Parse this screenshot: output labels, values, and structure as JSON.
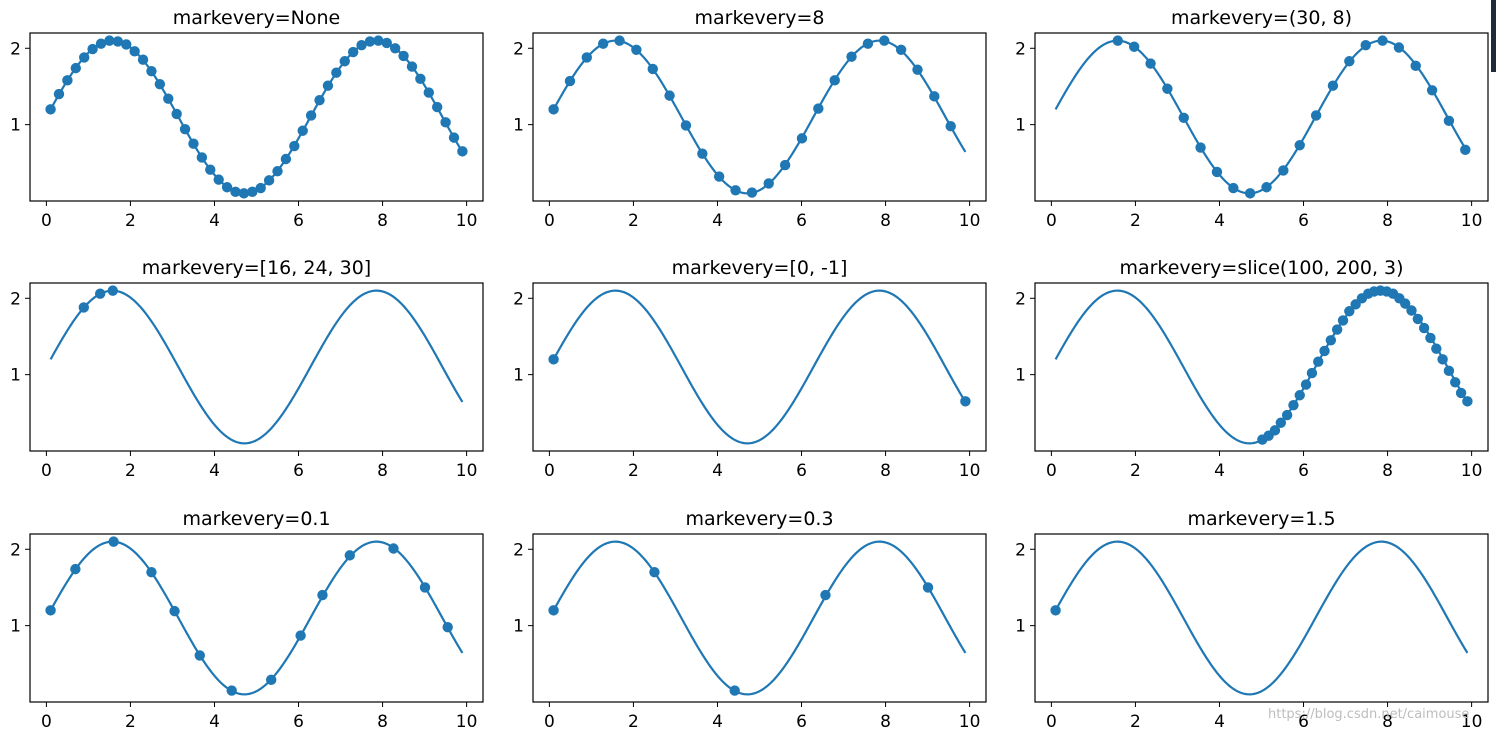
{
  "watermark": "https://blog.csdn.net/caimouse",
  "line_color": "#1f77b4",
  "chart_data": [
    {
      "type": "line",
      "title": "markevery=None",
      "markevery": "None",
      "function": "y = sin(x) + 1.1",
      "x_range": [
        0.1,
        9.9
      ],
      "num_points": 200,
      "xlim": [
        -0.39,
        10.39
      ],
      "ylim": [
        0.0,
        2.2
      ],
      "xticks": [
        0,
        2,
        4,
        6,
        8,
        10
      ],
      "yticks": [
        1,
        2
      ],
      "marker_points": [
        [
          0.1,
          1.2
        ],
        [
          0.3,
          1.4
        ],
        [
          0.5,
          1.58
        ],
        [
          0.7,
          1.74
        ],
        [
          0.9,
          1.88
        ],
        [
          1.1,
          1.99
        ],
        [
          1.3,
          2.06
        ],
        [
          1.5,
          2.1
        ],
        [
          1.7,
          2.09
        ],
        [
          1.9,
          2.05
        ],
        [
          2.1,
          1.96
        ],
        [
          2.3,
          1.85
        ],
        [
          2.5,
          1.7
        ],
        [
          2.7,
          1.53
        ],
        [
          2.9,
          1.34
        ],
        [
          3.1,
          1.14
        ],
        [
          3.3,
          0.94
        ],
        [
          3.5,
          0.75
        ],
        [
          3.7,
          0.57
        ],
        [
          3.9,
          0.41
        ],
        [
          4.1,
          0.28
        ],
        [
          4.3,
          0.18
        ],
        [
          4.5,
          0.12
        ],
        [
          4.7,
          0.1
        ],
        [
          4.9,
          0.12
        ],
        [
          5.1,
          0.17
        ],
        [
          5.3,
          0.27
        ],
        [
          5.5,
          0.39
        ],
        [
          5.7,
          0.55
        ],
        [
          5.9,
          0.72
        ],
        [
          6.1,
          0.92
        ],
        [
          6.3,
          1.12
        ],
        [
          6.5,
          1.32
        ],
        [
          6.7,
          1.51
        ],
        [
          6.9,
          1.68
        ],
        [
          7.1,
          1.83
        ],
        [
          7.3,
          1.95
        ],
        [
          7.5,
          2.04
        ],
        [
          7.7,
          2.09
        ],
        [
          7.9,
          2.1
        ],
        [
          8.1,
          2.07
        ],
        [
          8.3,
          2.0
        ],
        [
          8.5,
          1.9
        ],
        [
          8.7,
          1.76
        ],
        [
          8.9,
          1.6
        ],
        [
          9.1,
          1.42
        ],
        [
          9.3,
          1.23
        ],
        [
          9.5,
          1.03
        ],
        [
          9.7,
          0.83
        ],
        [
          9.9,
          0.65
        ]
      ]
    },
    {
      "type": "line",
      "title": "markevery=8",
      "markevery": "8",
      "function": "y = sin(x) + 1.1",
      "x_range": [
        0.1,
        9.9
      ],
      "num_points": 200,
      "xlim": [
        -0.39,
        10.39
      ],
      "ylim": [
        0.0,
        2.2
      ],
      "xticks": [
        0,
        2,
        4,
        6,
        8,
        10
      ],
      "yticks": [
        1,
        2
      ],
      "marker_points": [
        [
          0.1,
          1.2
        ],
        [
          0.49,
          1.57
        ],
        [
          0.89,
          1.88
        ],
        [
          1.28,
          2.06
        ],
        [
          1.67,
          2.1
        ],
        [
          2.07,
          1.98
        ],
        [
          2.46,
          1.73
        ],
        [
          2.86,
          1.38
        ],
        [
          3.25,
          0.99
        ],
        [
          3.64,
          0.62
        ],
        [
          4.04,
          0.32
        ],
        [
          4.43,
          0.14
        ],
        [
          4.82,
          0.11
        ],
        [
          5.22,
          0.23
        ],
        [
          5.61,
          0.47
        ],
        [
          6.01,
          0.82
        ],
        [
          6.4,
          1.21
        ],
        [
          6.79,
          1.58
        ],
        [
          7.19,
          1.89
        ],
        [
          7.58,
          2.06
        ],
        [
          7.97,
          2.1
        ],
        [
          8.37,
          1.98
        ],
        [
          8.76,
          1.72
        ],
        [
          9.16,
          1.37
        ],
        [
          9.55,
          0.98
        ]
      ]
    },
    {
      "type": "line",
      "title": "markevery=(30, 8)",
      "markevery": "(30, 8)",
      "function": "y = sin(x) + 1.1",
      "x_range": [
        0.1,
        9.9
      ],
      "num_points": 200,
      "xlim": [
        -0.39,
        10.39
      ],
      "ylim": [
        0.0,
        2.2
      ],
      "xticks": [
        0,
        2,
        4,
        6,
        8,
        10
      ],
      "yticks": [
        1,
        2
      ],
      "marker_points": [
        [
          1.58,
          2.1
        ],
        [
          1.97,
          2.02
        ],
        [
          2.36,
          1.8
        ],
        [
          2.76,
          1.47
        ],
        [
          3.15,
          1.09
        ],
        [
          3.55,
          0.7
        ],
        [
          3.94,
          0.38
        ],
        [
          4.33,
          0.17
        ],
        [
          4.73,
          0.1
        ],
        [
          5.12,
          0.18
        ],
        [
          5.52,
          0.4
        ],
        [
          5.91,
          0.73
        ],
        [
          6.3,
          1.12
        ],
        [
          6.7,
          1.51
        ],
        [
          7.09,
          1.83
        ],
        [
          7.48,
          2.04
        ],
        [
          7.88,
          2.1
        ],
        [
          8.27,
          2.01
        ],
        [
          8.67,
          1.77
        ],
        [
          9.06,
          1.45
        ],
        [
          9.46,
          1.05
        ],
        [
          9.85,
          0.67
        ]
      ]
    },
    {
      "type": "line",
      "title": "markevery=[16, 24, 30]",
      "markevery": "[16, 24, 30]",
      "function": "y = sin(x) + 1.1",
      "x_range": [
        0.1,
        9.9
      ],
      "num_points": 200,
      "xlim": [
        -0.39,
        10.39
      ],
      "ylim": [
        0.0,
        2.2
      ],
      "xticks": [
        0,
        2,
        4,
        6,
        8,
        10
      ],
      "yticks": [
        1,
        2
      ],
      "marker_points": [
        [
          0.89,
          1.88
        ],
        [
          1.28,
          2.06
        ],
        [
          1.58,
          2.1
        ]
      ]
    },
    {
      "type": "line",
      "title": "markevery=[0, -1]",
      "markevery": "[0, -1]",
      "function": "y = sin(x) + 1.1",
      "x_range": [
        0.1,
        9.9
      ],
      "num_points": 200,
      "xlim": [
        -0.39,
        10.39
      ],
      "ylim": [
        0.0,
        2.2
      ],
      "xticks": [
        0,
        2,
        4,
        6,
        8,
        10
      ],
      "yticks": [
        1,
        2
      ],
      "marker_points": [
        [
          0.1,
          1.2
        ],
        [
          9.9,
          0.65
        ]
      ]
    },
    {
      "type": "line",
      "title": "markevery=slice(100, 200, 3)",
      "markevery": "slice(100, 200, 3)",
      "function": "y = sin(x) + 1.1",
      "x_range": [
        0.1,
        9.9
      ],
      "num_points": 200,
      "xlim": [
        -0.39,
        10.39
      ],
      "ylim": [
        0.0,
        2.2
      ],
      "xticks": [
        0,
        2,
        4,
        6,
        8,
        10
      ],
      "yticks": [
        1,
        2
      ],
      "marker_points": [
        [
          5.02,
          0.15
        ],
        [
          5.17,
          0.2
        ],
        [
          5.32,
          0.27
        ],
        [
          5.46,
          0.37
        ],
        [
          5.61,
          0.47
        ],
        [
          5.76,
          0.6
        ],
        [
          5.91,
          0.73
        ],
        [
          6.06,
          0.87
        ],
        [
          6.2,
          1.02
        ],
        [
          6.35,
          1.17
        ],
        [
          6.5,
          1.31
        ],
        [
          6.65,
          1.45
        ],
        [
          6.8,
          1.59
        ],
        [
          6.94,
          1.71
        ],
        [
          7.09,
          1.83
        ],
        [
          7.24,
          1.92
        ],
        [
          7.39,
          2.0
        ],
        [
          7.54,
          2.06
        ],
        [
          7.68,
          2.09
        ],
        [
          7.83,
          2.1
        ],
        [
          7.98,
          2.09
        ],
        [
          8.13,
          2.06
        ],
        [
          8.28,
          2.0
        ],
        [
          8.42,
          1.93
        ],
        [
          8.57,
          1.84
        ],
        [
          8.72,
          1.73
        ],
        [
          8.87,
          1.61
        ],
        [
          9.02,
          1.48
        ],
        [
          9.16,
          1.34
        ],
        [
          9.31,
          1.2
        ],
        [
          9.46,
          1.05
        ],
        [
          9.61,
          0.9
        ],
        [
          9.75,
          0.76
        ],
        [
          9.9,
          0.65
        ]
      ]
    },
    {
      "type": "line",
      "title": "markevery=0.1",
      "markevery": "0.1",
      "function": "y = sin(x) + 1.1",
      "x_range": [
        0.1,
        9.9
      ],
      "num_points": 200,
      "xlim": [
        -0.39,
        10.39
      ],
      "ylim": [
        0.0,
        2.2
      ],
      "xticks": [
        0,
        2,
        4,
        6,
        8,
        10
      ],
      "yticks": [
        1,
        2
      ],
      "marker_points": [
        [
          0.1,
          1.2
        ],
        [
          0.69,
          1.74
        ],
        [
          1.6,
          2.1
        ],
        [
          2.5,
          1.7
        ],
        [
          3.05,
          1.19
        ],
        [
          3.65,
          0.61
        ],
        [
          4.41,
          0.15
        ],
        [
          5.35,
          0.29
        ],
        [
          6.05,
          0.87
        ],
        [
          6.57,
          1.4
        ],
        [
          7.22,
          1.92
        ],
        [
          8.26,
          2.01
        ],
        [
          9.01,
          1.5
        ],
        [
          9.55,
          0.98
        ]
      ]
    },
    {
      "type": "line",
      "title": "markevery=0.3",
      "markevery": "0.3",
      "function": "y = sin(x) + 1.1",
      "x_range": [
        0.1,
        9.9
      ],
      "num_points": 200,
      "xlim": [
        -0.39,
        10.39
      ],
      "ylim": [
        0.0,
        2.2
      ],
      "xticks": [
        0,
        2,
        4,
        6,
        8,
        10
      ],
      "yticks": [
        1,
        2
      ],
      "marker_points": [
        [
          0.1,
          1.2
        ],
        [
          2.5,
          1.7
        ],
        [
          4.41,
          0.15
        ],
        [
          6.57,
          1.4
        ],
        [
          9.01,
          1.5
        ]
      ]
    },
    {
      "type": "line",
      "title": "markevery=1.5",
      "markevery": "1.5",
      "function": "y = sin(x) + 1.1",
      "x_range": [
        0.1,
        9.9
      ],
      "num_points": 200,
      "xlim": [
        -0.39,
        10.39
      ],
      "ylim": [
        0.0,
        2.2
      ],
      "xticks": [
        0,
        2,
        4,
        6,
        8,
        10
      ],
      "yticks": [
        1,
        2
      ],
      "marker_points": [
        [
          0.1,
          1.2
        ]
      ]
    }
  ]
}
